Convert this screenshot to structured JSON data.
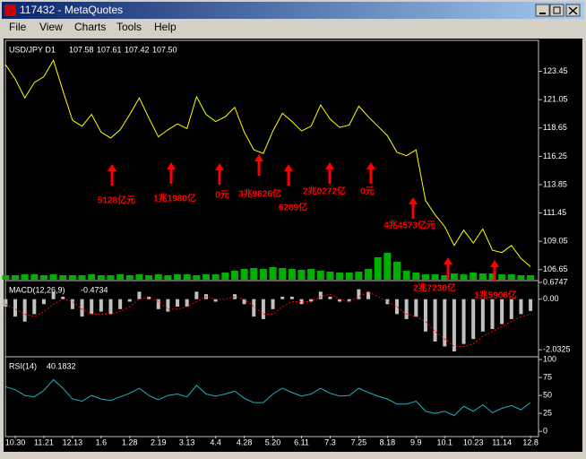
{
  "window": {
    "title": "117432 - MetaQuotes",
    "menu": [
      "File",
      "View",
      "Charts",
      "Tools",
      "Help"
    ]
  },
  "chart_data": [
    {
      "type": "line",
      "title": "USD/JPY D1",
      "ohlc": [
        "107.58",
        "107.61",
        "107.42",
        "107.50"
      ],
      "categories": [
        null,
        "10.30",
        null,
        null,
        "11.21",
        null,
        null,
        "12.13",
        null,
        null,
        "1.6",
        null,
        null,
        "1.28",
        null,
        null,
        "2.19",
        null,
        null,
        "3.13",
        null,
        null,
        "4.4",
        null,
        null,
        "4.28",
        null,
        null,
        "5.20",
        null,
        null,
        "6.11",
        null,
        null,
        "7.3",
        null,
        null,
        "7.25",
        null,
        null,
        "8.18",
        null,
        null,
        "9.9",
        null,
        null,
        "10.1",
        null,
        null,
        "10.23",
        null,
        null,
        "11.14",
        null,
        null,
        "12.8"
      ],
      "series": [
        {
          "type": "line",
          "color": "#ffff00",
          "values": [
            124.0,
            122.8,
            121.2,
            122.5,
            123.0,
            124.4,
            121.8,
            119.3,
            118.8,
            119.8,
            118.3,
            117.8,
            118.5,
            119.8,
            121.2,
            119.5,
            117.9,
            118.5,
            119.0,
            118.6,
            121.3,
            119.8,
            119.2,
            119.6,
            120.4,
            118.3,
            116.8,
            116.5,
            118.4,
            119.9,
            119.2,
            118.4,
            118.8,
            120.6,
            119.4,
            118.7,
            118.9,
            120.5,
            119.6,
            118.8,
            118.0,
            116.6,
            116.3,
            116.8,
            112.5,
            111.3,
            110.3,
            108.7,
            110.0,
            108.9,
            110.1,
            108.3,
            108.1,
            108.7,
            107.6,
            106.9
          ]
        },
        {
          "type": "bar",
          "color": "#00b000",
          "values": [
            5,
            5,
            6,
            6,
            5,
            6,
            5,
            5,
            5,
            6,
            5,
            5,
            6,
            5,
            6,
            5,
            6,
            5,
            6,
            6,
            5,
            6,
            6,
            8,
            10,
            12,
            13,
            12,
            14,
            13,
            12,
            11,
            12,
            10,
            9,
            8,
            8,
            9,
            12,
            25,
            30,
            20,
            10,
            8,
            6,
            6,
            5,
            7,
            6,
            8,
            7,
            7,
            6,
            6,
            5,
            5
          ]
        }
      ],
      "ylim": [
        105.8,
        126.0
      ],
      "yticks": [
        123.45,
        121.05,
        118.65,
        116.25,
        113.85,
        111.45,
        109.05,
        106.65
      ],
      "annotations": [
        "5128亿元",
        "1兆1980亿",
        "0元",
        "3兆9826亿",
        "6289亿",
        "2兆0272亿",
        "0元",
        "4兆4573亿元",
        "2兆7230亿",
        "1兆5906亿"
      ],
      "annotation_color": "#ff0000"
    },
    {
      "type": "bar",
      "title": "MACD(12,26,9)",
      "series": [
        {
          "type": "bar",
          "color": "#c0c0c0",
          "values": [
            -0.3,
            -0.7,
            -0.9,
            -0.6,
            -0.2,
            0.3,
            0.1,
            -0.4,
            -0.7,
            -0.6,
            -0.5,
            -0.6,
            -0.4,
            -0.1,
            0.3,
            0.1,
            -0.4,
            -0.5,
            -0.3,
            -0.3,
            0.3,
            0.2,
            -0.1,
            0.0,
            0.2,
            -0.2,
            -0.7,
            -0.8,
            -0.4,
            0.1,
            0.1,
            -0.2,
            -0.1,
            0.3,
            0.1,
            -0.1,
            -0.1,
            0.4,
            0.3,
            0.0,
            -0.2,
            -0.6,
            -0.8,
            -0.7,
            -1.3,
            -1.7,
            -1.9,
            -2.1,
            -1.8,
            -1.6,
            -1.3,
            -1.2,
            -1.0,
            -0.8,
            -0.6,
            -0.4734
          ]
        },
        {
          "type": "line",
          "color": "#ff0000",
          "values": [
            -0.2,
            -0.4,
            -0.6,
            -0.7,
            -0.5,
            -0.2,
            0.0,
            -0.1,
            -0.4,
            -0.6,
            -0.6,
            -0.6,
            -0.5,
            -0.3,
            0.0,
            0.1,
            -0.1,
            -0.4,
            -0.4,
            -0.3,
            -0.1,
            0.1,
            0.0,
            0.0,
            0.1,
            0.0,
            -0.3,
            -0.6,
            -0.6,
            -0.3,
            -0.1,
            -0.1,
            -0.1,
            0.1,
            0.2,
            0.0,
            -0.1,
            0.1,
            0.3,
            0.1,
            -0.1,
            -0.3,
            -0.6,
            -0.7,
            -0.9,
            -1.3,
            -1.6,
            -1.9,
            -1.9,
            -1.8,
            -1.5,
            -1.3,
            -1.1,
            -0.9,
            -0.7,
            -0.6
          ]
        }
      ],
      "ylim": [
        -2.28,
        0.71
      ],
      "yticks": [
        0.6747,
        {
          "value": 0,
          "label": "0.00"
        },
        -2.0325
      ]
    },
    {
      "type": "line",
      "title": "RSI(14)",
      "series": [
        {
          "type": "line",
          "color": "#20b0c0",
          "values": [
            62,
            58,
            50,
            48,
            57,
            72,
            60,
            45,
            42,
            50,
            45,
            43,
            48,
            53,
            60,
            50,
            44,
            50,
            52,
            48,
            64,
            52,
            49,
            52,
            56,
            46,
            40,
            40,
            52,
            60,
            54,
            49,
            52,
            60,
            53,
            49,
            50,
            60,
            54,
            49,
            45,
            38,
            38,
            42,
            28,
            25,
            28,
            22,
            35,
            28,
            37,
            26,
            32,
            36,
            30,
            40.1832
          ]
        }
      ],
      "ylim": [
        -6,
        102.5
      ],
      "yticks": [
        100,
        75,
        50,
        25,
        0
      ]
    }
  ]
}
